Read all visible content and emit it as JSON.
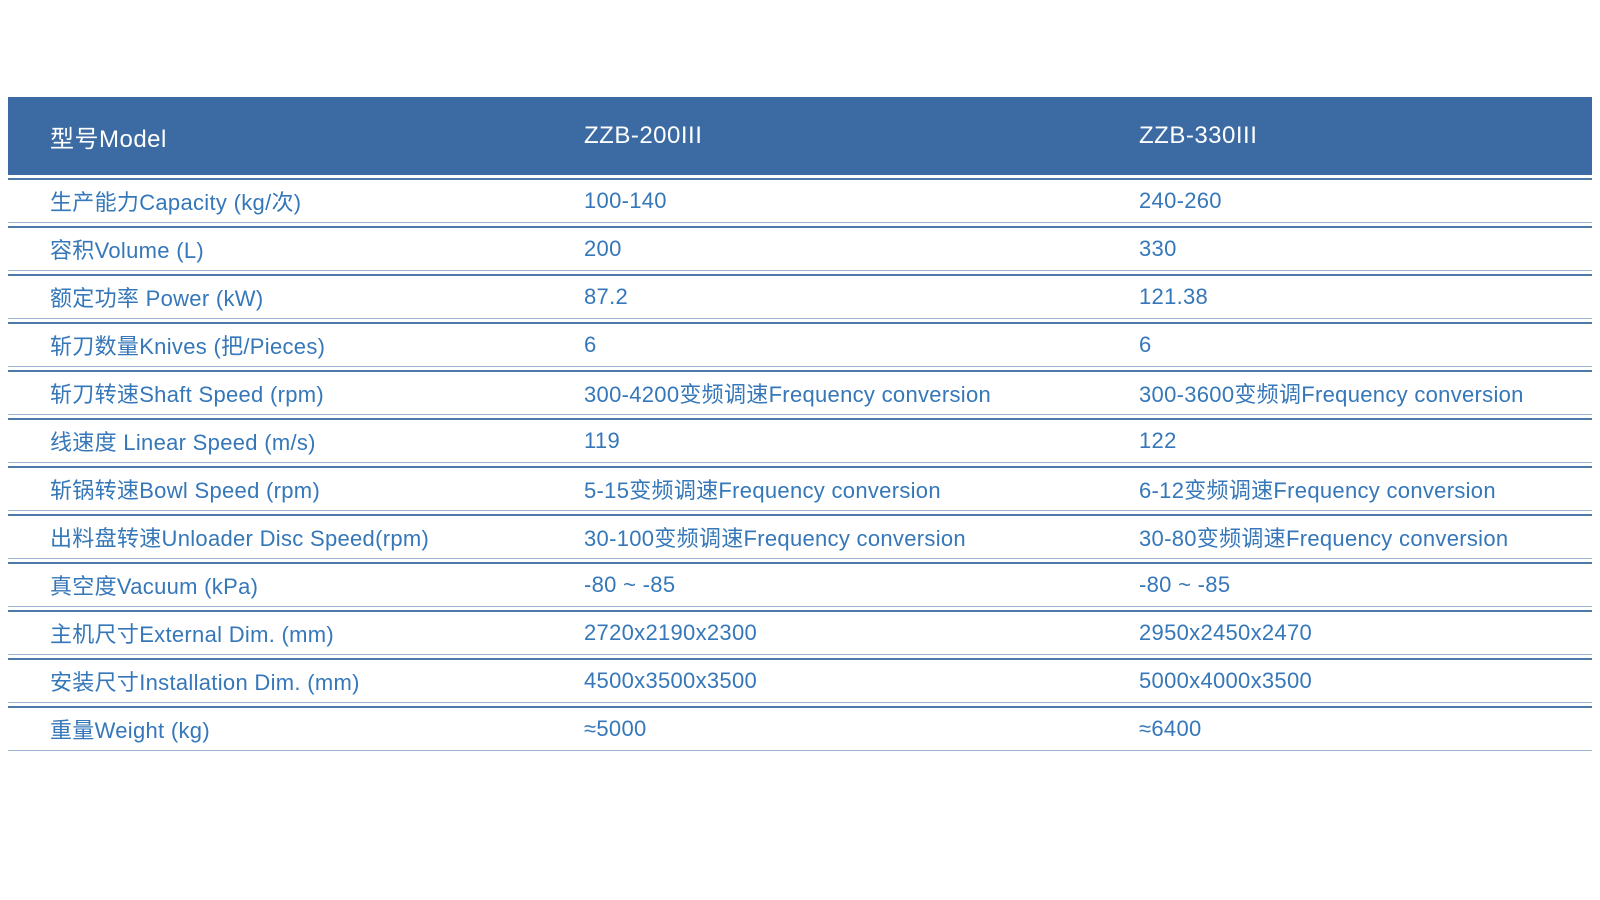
{
  "colors": {
    "header_bg": "#3c6ba3",
    "header_text": "#ffffff",
    "body_text": "#3577b8",
    "rule_dark": "#4d7aab",
    "rule_light": "#9db4d2"
  },
  "table": {
    "header": {
      "model_label": "型号Model",
      "model_200": "ZZB-200III",
      "model_330": "ZZB-330III"
    },
    "rows": [
      {
        "label": "生产能力Capacity (kg/次)",
        "zzb200": "100-140",
        "zzb330": "240-260"
      },
      {
        "label": "容积Volume (L)",
        "zzb200": "200",
        "zzb330": "330"
      },
      {
        "label": "额定功率 Power (kW)",
        "zzb200": "87.2",
        "zzb330": "121.38"
      },
      {
        "label": "斩刀数量Knives (把/Pieces)",
        "zzb200": "6",
        "zzb330": "6"
      },
      {
        "label": "斩刀转速Shaft Speed (rpm)",
        "zzb200": "300-4200变频调速Frequency conversion",
        "zzb330": "300-3600变频调Frequency conversion"
      },
      {
        "label": "线速度 Linear Speed (m/s)",
        "zzb200": "119",
        "zzb330": "122"
      },
      {
        "label": "斩锅转速Bowl Speed (rpm)",
        "zzb200": "5-15变频调速Frequency conversion",
        "zzb330": "6-12变频调速Frequency conversion"
      },
      {
        "label": "出料盘转速Unloader Disc Speed(rpm)",
        "zzb200": "30-100变频调速Frequency conversion",
        "zzb330": "30-80变频调速Frequency conversion"
      },
      {
        "label": "真空度Vacuum (kPa)",
        "zzb200": "-80 ~ -85",
        "zzb330": "-80 ~ -85"
      },
      {
        "label": "主机尺寸External Dim. (mm)",
        "zzb200": "2720x2190x2300",
        "zzb330": "2950x2450x2470"
      },
      {
        "label": "安装尺寸Installation Dim. (mm)",
        "zzb200": "4500x3500x3500",
        "zzb330": "5000x4000x3500"
      },
      {
        "label": "重量Weight (kg)",
        "zzb200": "≈5000",
        "zzb330": "≈6400"
      }
    ]
  }
}
